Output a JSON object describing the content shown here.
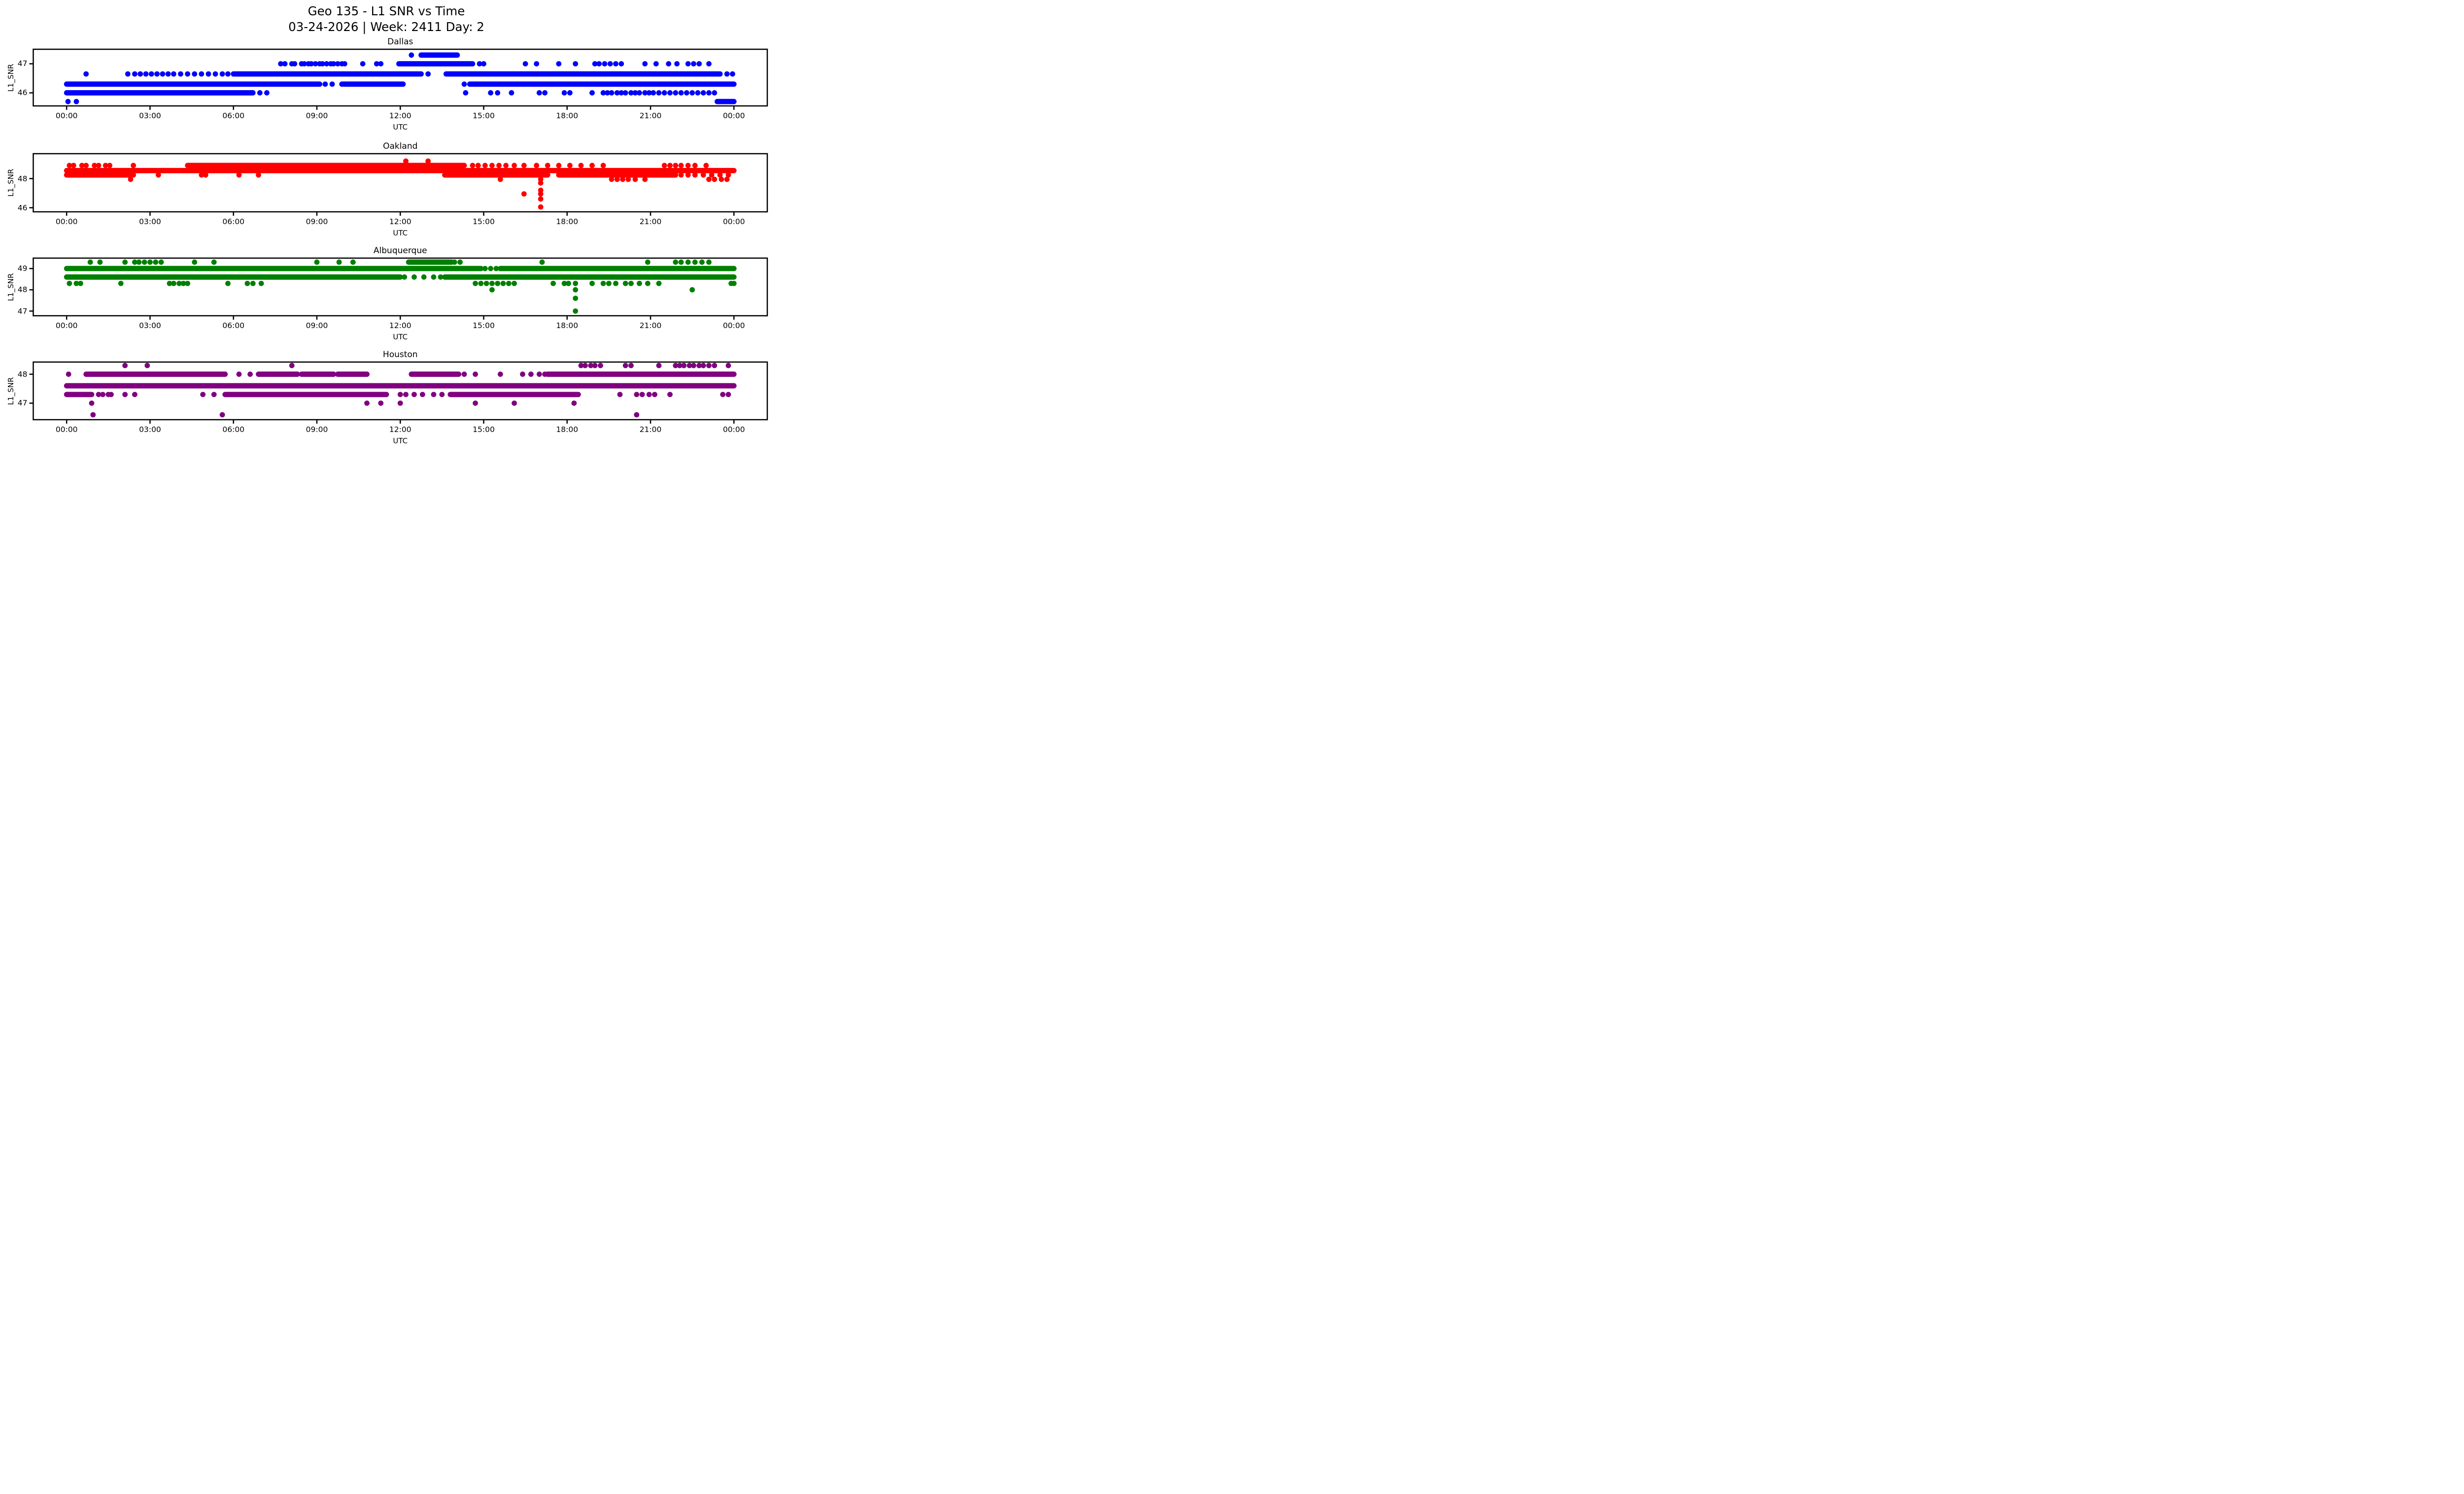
{
  "suptitle": {
    "line1": "Geo 135 - L1 SNR vs Time",
    "line2": "03-24-2026 | Week: 2411 Day: 2"
  },
  "axes": {
    "xlabel": "UTC",
    "ylabel": "L1_SNR",
    "xlim": [
      -1.2,
      25.2
    ],
    "x_tick_hours": [
      0,
      3,
      6,
      9,
      12,
      15,
      18,
      21,
      24
    ],
    "x_tick_labels": [
      "00:00",
      "03:00",
      "06:00",
      "09:00",
      "12:00",
      "15:00",
      "18:00",
      "21:00",
      "00:00"
    ]
  },
  "chart_data": {
    "type": "scatter",
    "title": "Geo 135 - L1 SNR vs Time",
    "subtitle": "03-24-2026 | Week: 2411 Day: 2",
    "xlabel": "UTC",
    "ylabel": "L1_SNR",
    "x_units": "hours UTC, 00:00-24:00",
    "subplots": [
      {
        "title": "Dallas",
        "color": "#0000FF",
        "ylim": [
          45.55,
          47.5
        ],
        "yticks": [
          46,
          47
        ],
        "bands": [
          {
            "y": 47.3,
            "solid": [
              [
                12.75,
                14.05
              ]
            ],
            "dots": [
              12.4
            ]
          },
          {
            "y": 47.0,
            "solid": [
              [
                11.95,
                14.6
              ]
            ],
            "dots": [
              7.7,
              7.85,
              8.1,
              8.2,
              8.45,
              8.55,
              8.7,
              8.8,
              8.95,
              9.1,
              9.2,
              9.35,
              9.5,
              9.6,
              9.75,
              9.9,
              10.0,
              10.65,
              11.15,
              11.3,
              14.85,
              15.0,
              16.5,
              16.9,
              17.7,
              18.3,
              19.0,
              19.15,
              19.35,
              19.55,
              19.75,
              19.95,
              20.8,
              21.2,
              21.65,
              21.95,
              22.35,
              22.55,
              22.75,
              23.1
            ]
          },
          {
            "y": 46.65,
            "solid": [
              [
                6.0,
                12.75
              ],
              [
                13.65,
                23.5
              ]
            ],
            "dots": [
              0.7,
              2.2,
              2.45,
              2.65,
              2.85,
              3.05,
              3.25,
              3.45,
              3.65,
              3.85,
              4.1,
              4.35,
              4.6,
              4.85,
              5.1,
              5.35,
              5.6,
              5.8,
              13.0,
              23.75,
              23.95
            ]
          },
          {
            "y": 46.3,
            "solid": [
              [
                0,
                9.1
              ],
              [
                9.9,
                12.1
              ],
              [
                14.5,
                24.0
              ]
            ],
            "dots": [
              9.3,
              9.55,
              14.3
            ]
          },
          {
            "y": 46.0,
            "solid": [
              [
                0,
                6.7
              ]
            ],
            "dots": [
              6.95,
              7.2,
              14.35,
              15.25,
              15.5,
              16.0,
              17.0,
              17.2,
              17.9,
              18.1,
              18.9,
              19.3,
              19.45,
              19.6,
              19.8,
              19.95,
              20.1,
              20.3,
              20.45,
              20.6,
              20.8,
              20.95,
              21.1,
              21.3,
              21.5,
              21.7,
              21.9,
              22.1,
              22.3,
              22.5,
              22.7,
              22.9,
              23.1,
              23.3
            ]
          },
          {
            "y": 45.7,
            "solid": [
              [
                23.4,
                24.0
              ]
            ],
            "dots": [
              0.05,
              0.35
            ]
          }
        ]
      },
      {
        "title": "Oakland",
        "color": "#FF0000",
        "ylim": [
          45.72,
          49.71
        ],
        "yticks": [
          46,
          48
        ],
        "bands": [
          {
            "y": 49.2,
            "solid": [],
            "dots": [
              12.2,
              13.0
            ]
          },
          {
            "y": 48.9,
            "solid": [
              [
                4.35,
                14.3
              ]
            ],
            "dots": [
              0.1,
              0.25,
              0.55,
              0.7,
              1.0,
              1.15,
              1.4,
              1.55,
              2.4,
              14.6,
              14.8,
              15.05,
              15.3,
              15.55,
              15.8,
              16.1,
              16.45,
              16.9,
              17.3,
              17.7,
              18.1,
              18.5,
              18.9,
              19.3,
              21.5,
              21.7,
              21.9,
              22.1,
              22.35,
              22.6,
              23.0
            ]
          },
          {
            "y": 48.55,
            "solid": [
              [
                0,
                24
              ]
            ],
            "dots": []
          },
          {
            "y": 48.25,
            "solid": [
              [
                0,
                2.25
              ],
              [
                13.6,
                17.3
              ],
              [
                17.7,
                21.9
              ]
            ],
            "dots": [
              2.4,
              3.3,
              4.85,
              5.0,
              6.2,
              6.9,
              22.1,
              22.35,
              22.6,
              22.9,
              23.2,
              23.5,
              23.8
            ]
          },
          {
            "y": 47.95,
            "solid": [],
            "dots": [
              2.3,
              15.6,
              17.05,
              19.6,
              19.8,
              20.0,
              20.2,
              20.45,
              20.8,
              23.1,
              23.3,
              23.55,
              23.75
            ]
          },
          {
            "y": 47.7,
            "solid": [],
            "dots": [
              17.05
            ]
          },
          {
            "y": 47.2,
            "solid": [],
            "dots": [
              17.05
            ]
          },
          {
            "y": 46.95,
            "solid": [],
            "dots": [
              16.45,
              17.05
            ]
          },
          {
            "y": 46.6,
            "solid": [],
            "dots": [
              17.05
            ]
          },
          {
            "y": 46.05,
            "solid": [],
            "dots": [
              17.05
            ]
          }
        ]
      },
      {
        "title": "Albuquerque",
        "color": "#008000",
        "ylim": [
          46.78,
          49.49
        ],
        "yticks": [
          47,
          48,
          49
        ],
        "bands": [
          {
            "y": 49.3,
            "solid": [
              [
                12.3,
                13.85
              ]
            ],
            "dots": [
              0.85,
              1.2,
              2.1,
              2.45,
              2.6,
              2.8,
              3.0,
              3.2,
              3.4,
              4.6,
              5.3,
              9.0,
              9.8,
              10.3,
              13.95,
              14.15,
              17.1,
              20.9,
              21.9,
              22.1,
              22.35,
              22.6,
              22.85,
              23.1
            ]
          },
          {
            "y": 49.0,
            "solid": [
              [
                0,
                14.9
              ],
              [
                15.6,
                24
              ]
            ],
            "dots": [
              15.05,
              15.25,
              15.45
            ]
          },
          {
            "y": 48.6,
            "solid": [
              [
                0,
                12.0
              ],
              [
                13.6,
                24
              ]
            ],
            "dots": [
              12.15,
              12.5,
              12.85,
              13.2,
              13.45
            ]
          },
          {
            "y": 48.3,
            "solid": [],
            "dots": [
              0.1,
              0.35,
              0.5,
              1.95,
              3.7,
              3.85,
              4.05,
              4.2,
              4.35,
              5.8,
              6.5,
              6.7,
              7.0,
              14.7,
              14.9,
              15.1,
              15.3,
              15.5,
              15.7,
              15.9,
              16.1,
              17.5,
              17.9,
              18.05,
              18.3,
              18.9,
              19.3,
              19.5,
              19.75,
              20.1,
              20.3,
              20.6,
              20.9,
              21.3,
              23.9,
              24.0
            ]
          },
          {
            "y": 48.0,
            "solid": [],
            "dots": [
              15.3,
              18.3,
              22.5
            ]
          },
          {
            "y": 47.6,
            "solid": [],
            "dots": [
              18.3
            ]
          },
          {
            "y": 47.0,
            "solid": [],
            "dots": [
              18.3
            ]
          }
        ]
      },
      {
        "title": "Houston",
        "color": "#800080",
        "ylim": [
          46.43,
          48.42
        ],
        "yticks": [
          47,
          48
        ],
        "bands": [
          {
            "y": 48.3,
            "solid": [],
            "dots": [
              2.1,
              2.9,
              8.1,
              18.5,
              18.65,
              18.85,
              19.0,
              19.2,
              20.1,
              20.3,
              21.3,
              21.9,
              22.05,
              22.2,
              22.4,
              22.55,
              22.75,
              22.9,
              23.1,
              23.3,
              23.8
            ]
          },
          {
            "y": 48.0,
            "solid": [
              [
                0.7,
                5.7
              ],
              [
                6.9,
                8.3
              ],
              [
                8.45,
                9.6
              ],
              [
                9.75,
                10.8
              ],
              [
                12.4,
                14.1
              ],
              [
                17.3,
                24
              ]
            ],
            "dots": [
              0.07,
              6.2,
              6.6,
              14.3,
              14.7,
              15.6,
              16.4,
              16.7,
              17.0,
              17.2
            ]
          },
          {
            "y": 47.6,
            "solid": [
              [
                0,
                24
              ]
            ],
            "dots": []
          },
          {
            "y": 47.3,
            "solid": [
              [
                0,
                0.9
              ],
              [
                5.7,
                11.5
              ],
              [
                13.8,
                18.4
              ]
            ],
            "dots": [
              1.15,
              1.3,
              1.5,
              1.6,
              2.1,
              2.45,
              4.9,
              5.3,
              12.0,
              12.2,
              12.5,
              12.8,
              13.2,
              13.5,
              19.9,
              20.5,
              20.7,
              20.95,
              21.15,
              21.7,
              23.6,
              23.8
            ]
          },
          {
            "y": 47.0,
            "solid": [],
            "dots": [
              0.9,
              10.8,
              11.3,
              12.0,
              14.7,
              16.1,
              18.25
            ]
          },
          {
            "y": 46.6,
            "solid": [],
            "dots": [
              0.95,
              5.6,
              20.5
            ]
          }
        ]
      }
    ]
  }
}
